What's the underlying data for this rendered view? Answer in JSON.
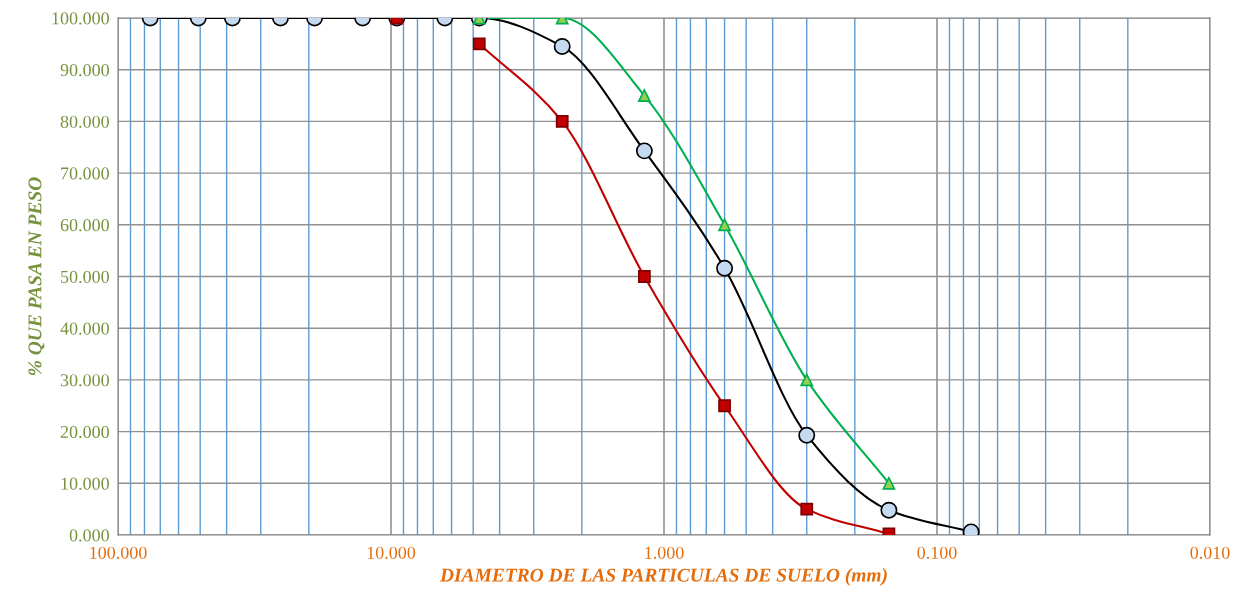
{
  "chart_data": {
    "type": "line",
    "xlabel": "DIAMETRO DE LAS PARTICULAS DE SUELO (mm)",
    "ylabel": "% QUE PASA EN PESO",
    "log": "x",
    "grid": true,
    "legend": false,
    "line_style": "solid",
    "xlim": [
      100,
      0.01
    ],
    "xticks": [
      {
        "value": 100,
        "label": "100.000"
      },
      {
        "value": 90,
        "label": null
      },
      {
        "value": 80,
        "label": null
      },
      {
        "value": 70,
        "label": null
      },
      {
        "value": 60,
        "label": null
      },
      {
        "value": 50,
        "label": null
      },
      {
        "value": 40,
        "label": null
      },
      {
        "value": 30,
        "label": null
      },
      {
        "value": 20,
        "label": null
      },
      {
        "value": 10,
        "label": "10.000"
      },
      {
        "value": 9,
        "label": null
      },
      {
        "value": 8,
        "label": null
      },
      {
        "value": 7,
        "label": null
      },
      {
        "value": 6,
        "label": null
      },
      {
        "value": 5,
        "label": null
      },
      {
        "value": 4,
        "label": null
      },
      {
        "value": 3,
        "label": null
      },
      {
        "value": 2,
        "label": null
      },
      {
        "value": 1,
        "label": "1.000"
      },
      {
        "value": 0.9,
        "label": null
      },
      {
        "value": 0.8,
        "label": null
      },
      {
        "value": 0.7,
        "label": null
      },
      {
        "value": 0.6,
        "label": null
      },
      {
        "value": 0.5,
        "label": null
      },
      {
        "value": 0.4,
        "label": null
      },
      {
        "value": 0.3,
        "label": null
      },
      {
        "value": 0.2,
        "label": null
      },
      {
        "value": 0.1,
        "label": "0.100"
      },
      {
        "value": 0.09,
        "label": null
      },
      {
        "value": 0.08,
        "label": null
      },
      {
        "value": 0.07,
        "label": null
      },
      {
        "value": 0.06,
        "label": null
      },
      {
        "value": 0.05,
        "label": null
      },
      {
        "value": 0.04,
        "label": null
      },
      {
        "value": 0.03,
        "label": null
      },
      {
        "value": 0.02,
        "label": null
      },
      {
        "value": 0.01,
        "label": "0.010"
      }
    ],
    "ylim": [
      0,
      100
    ],
    "yticks": [
      {
        "value": 0,
        "label": "0.000"
      },
      {
        "value": 10,
        "label": "10.000"
      },
      {
        "value": 20,
        "label": "20.000"
      },
      {
        "value": 30,
        "label": "30.000"
      },
      {
        "value": 40,
        "label": "40.000"
      },
      {
        "value": 50,
        "label": "50.000"
      },
      {
        "value": 60,
        "label": "60.000"
      },
      {
        "value": 70,
        "label": "70.000"
      },
      {
        "value": 80,
        "label": "80.000"
      },
      {
        "value": 90,
        "label": "90.000"
      },
      {
        "value": 100,
        "label": "100.000"
      }
    ],
    "series": [
      {
        "color": "#c00000",
        "marker": "square",
        "x": [
          9.525,
          6.35,
          4.75,
          2.36,
          1.18,
          0.6,
          0.3,
          0.15
        ],
        "values": [
          100,
          null,
          95,
          80,
          50,
          25,
          5,
          0.2
        ]
      },
      {
        "color": "#00b050",
        "marker": "triangle",
        "x": [
          4.75,
          2.36,
          1.18,
          0.6,
          0.3,
          0.15
        ],
        "values": [
          100,
          100,
          85,
          60,
          30,
          10
        ]
      },
      {
        "color": "#000000",
        "marker": "circle",
        "x": [
          76.2,
          50.8,
          38.1,
          25.4,
          19.05,
          12.7,
          9.525,
          6.35,
          4.75,
          2.36,
          1.18,
          0.6,
          0.3,
          0.15,
          0.075
        ],
        "values": [
          100,
          100,
          100,
          100,
          100,
          100,
          100,
          100,
          100,
          94.5,
          74.3,
          51.6,
          19.3,
          4.8,
          0.6
        ]
      }
    ]
  }
}
